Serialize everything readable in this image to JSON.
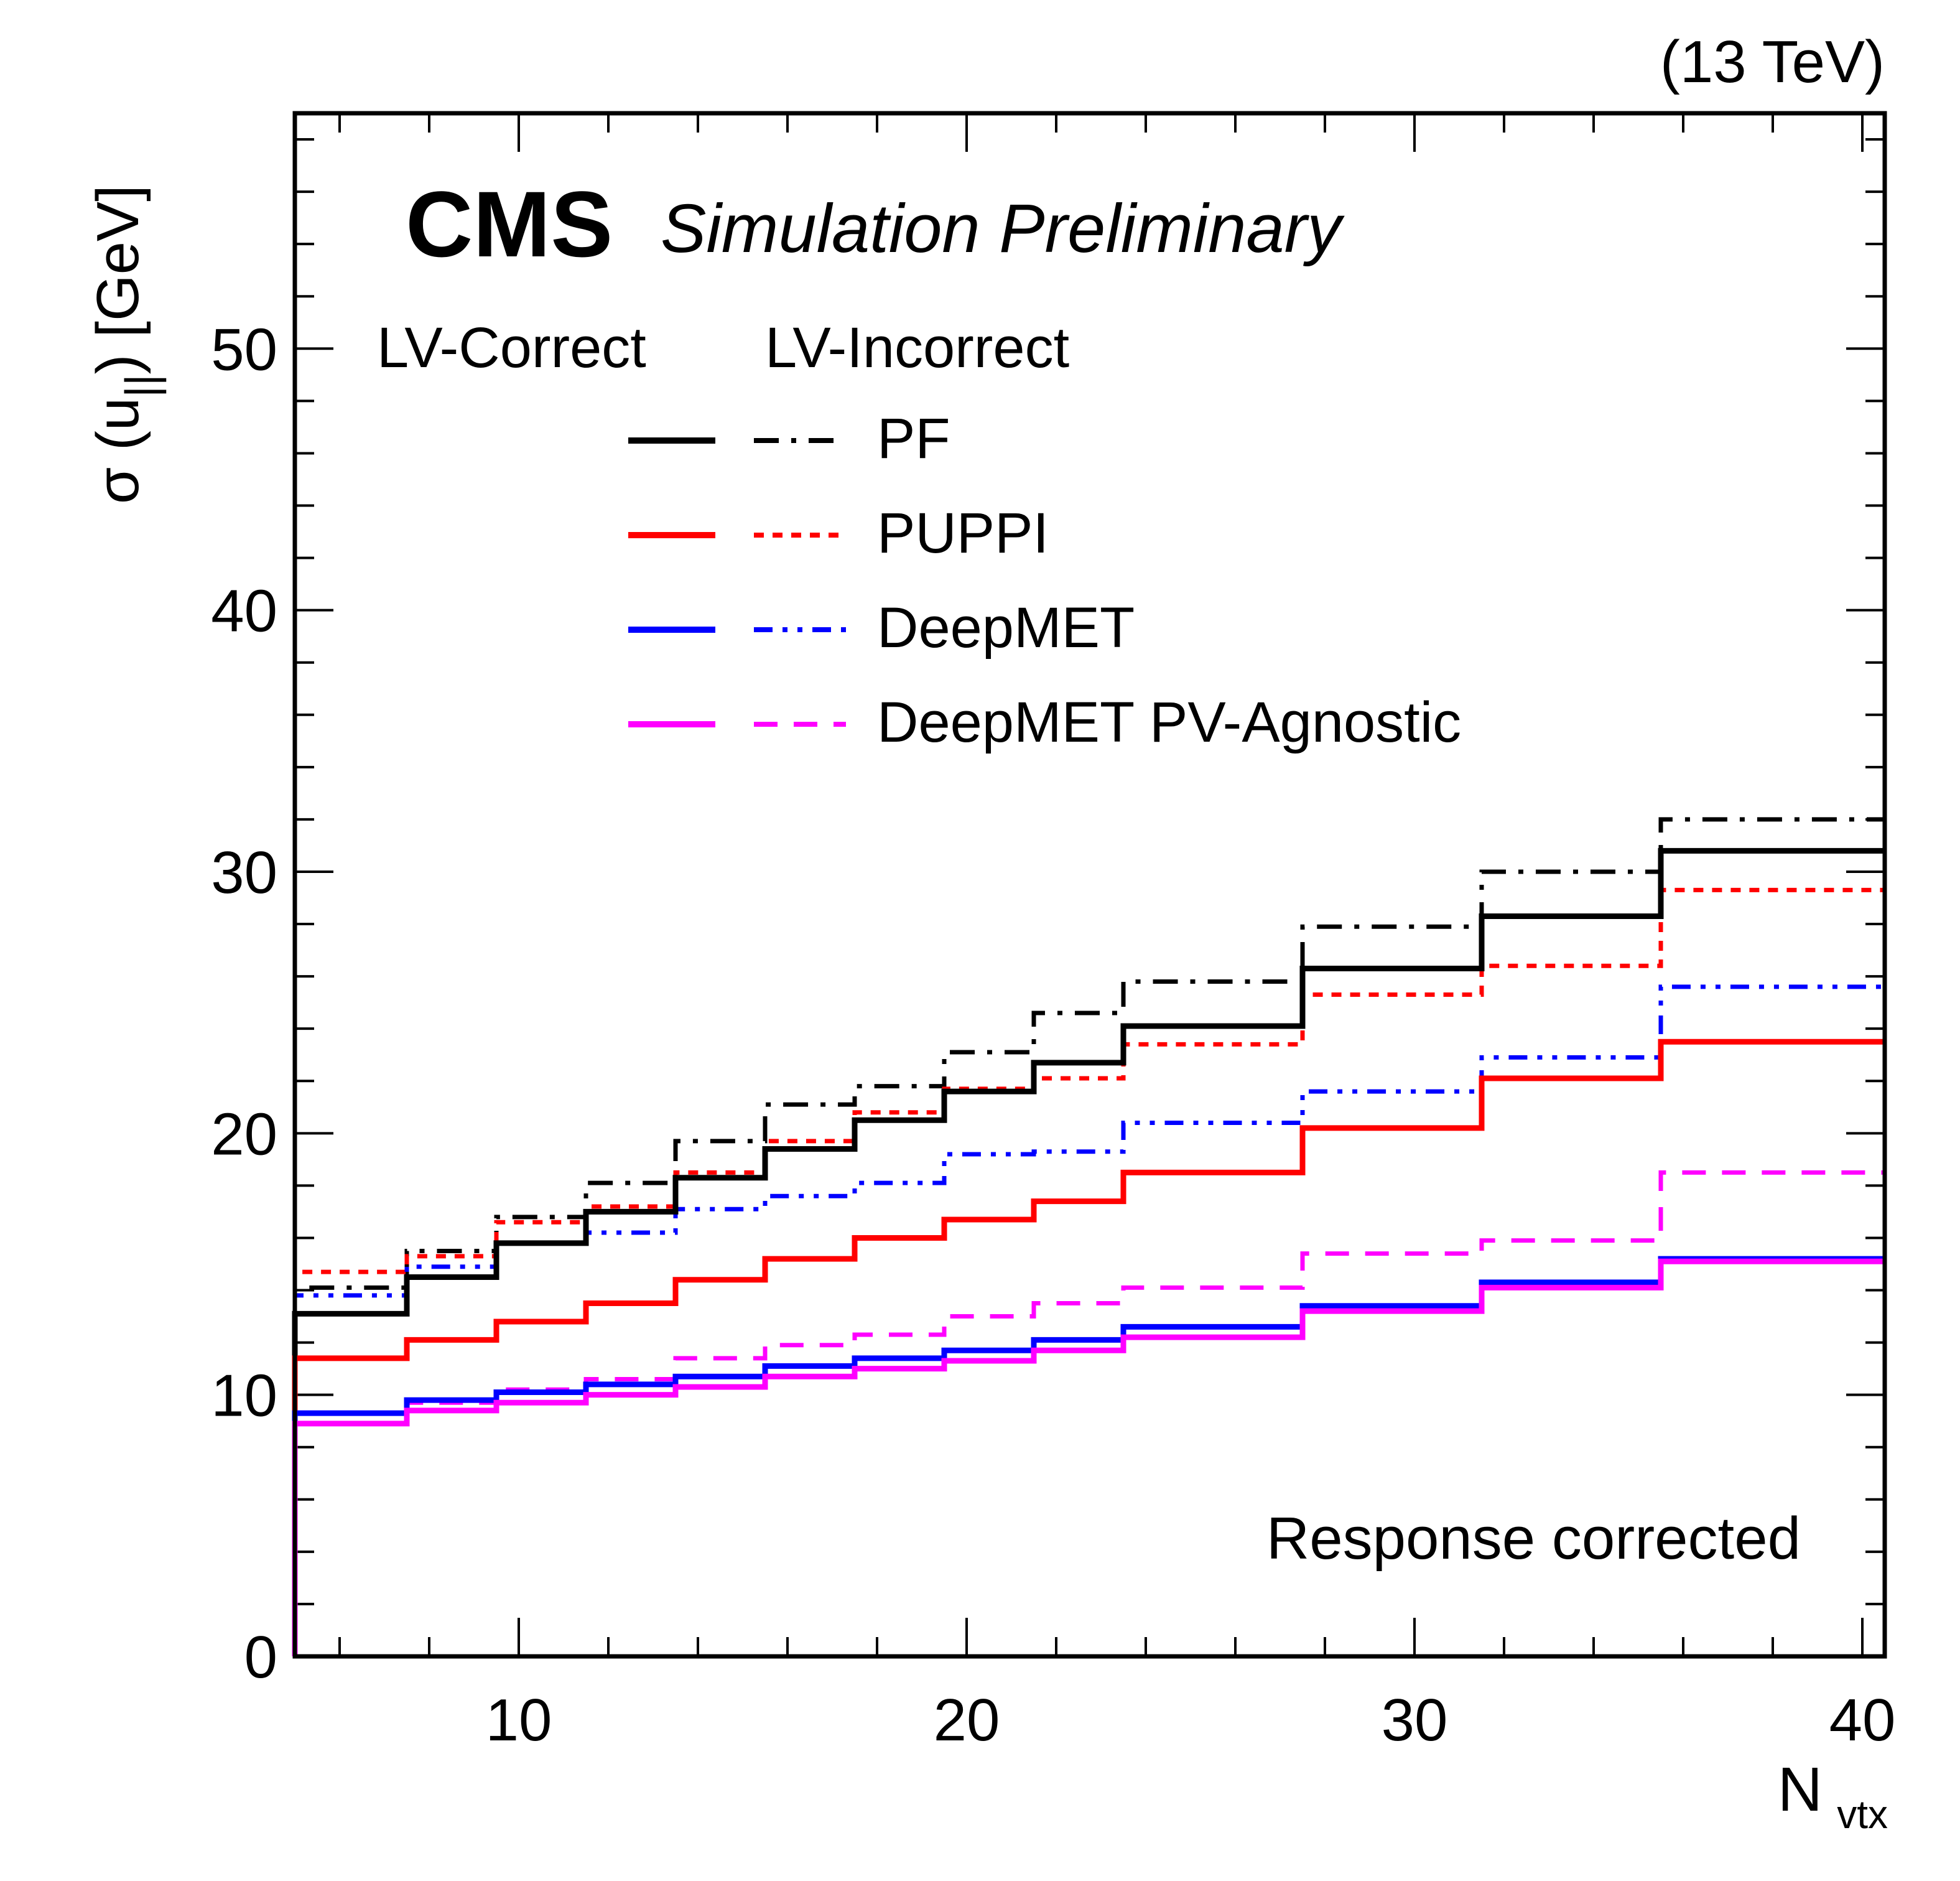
{
  "chart_data": {
    "type": "line",
    "step": true,
    "energy_label": "(13 TeV)",
    "experiment": "CMS",
    "status": "Simulation Preliminary",
    "note": "Response corrected",
    "xlabel": {
      "main": "N",
      "sub": "vtx"
    },
    "ylabel": {
      "prefix": "σ (u",
      "sub": "||",
      "suffix": ") [GeV]"
    },
    "xlim": [
      5,
      40.5
    ],
    "ylim": [
      0,
      59
    ],
    "x_ticks": [
      10,
      20,
      30,
      40
    ],
    "y_ticks": [
      0,
      10,
      20,
      30,
      40,
      50
    ],
    "x_tick_labels": [
      "10",
      "20",
      "30",
      "40"
    ],
    "y_tick_labels": [
      "0",
      "10",
      "20",
      "30",
      "40",
      "50"
    ],
    "grid": false,
    "legend": {
      "placement": "top-center",
      "column_headers": [
        "LV-Correct",
        "LV-Incorrect"
      ],
      "entries": [
        "PF",
        "PUPPI",
        "DeepMET",
        "DeepMET PV-Agnostic"
      ]
    },
    "bin_edges": [
      5,
      7.5,
      9.5,
      11.5,
      13.5,
      15.5,
      17.5,
      19.5,
      21.5,
      23.5,
      27.5,
      31.5,
      35.5,
      40.5
    ],
    "series": [
      {
        "name": "PF",
        "variant": "LV-Incorrect",
        "color": "#000000",
        "dash": "dashdot",
        "values": [
          14.1,
          15.5,
          16.8,
          18.1,
          19.7,
          21.1,
          21.8,
          23.1,
          24.6,
          25.8,
          27.9,
          30.0,
          32.0
        ]
      },
      {
        "name": "PUPPI",
        "variant": "LV-Incorrect",
        "color": "#ff0000",
        "dash": "dotted",
        "values": [
          14.7,
          15.3,
          16.6,
          17.2,
          18.5,
          19.7,
          20.8,
          21.7,
          22.1,
          23.4,
          25.3,
          26.4,
          29.3
        ]
      },
      {
        "name": "DeepMET",
        "variant": "LV-Incorrect",
        "color": "#0000ff",
        "dash": "dashdotdot",
        "values": [
          13.8,
          14.9,
          15.8,
          16.2,
          17.1,
          17.6,
          18.1,
          19.2,
          19.3,
          20.4,
          21.6,
          22.9,
          25.6
        ]
      },
      {
        "name": "DeepMET PV-Agnostic",
        "variant": "LV-Incorrect",
        "color": "#ff00ff",
        "dash": "dashed",
        "values": [
          8.9,
          9.7,
          10.2,
          10.6,
          11.4,
          11.9,
          12.3,
          13.0,
          13.5,
          14.1,
          15.4,
          15.9,
          18.5
        ]
      },
      {
        "name": "PF",
        "variant": "LV-Correct",
        "color": "#000000",
        "dash": "solid",
        "values": [
          13.1,
          14.5,
          15.8,
          17.0,
          18.3,
          19.4,
          20.5,
          21.6,
          22.7,
          24.1,
          26.3,
          28.3,
          30.8
        ]
      },
      {
        "name": "PUPPI",
        "variant": "LV-Correct",
        "color": "#ff0000",
        "dash": "solid",
        "values": [
          11.4,
          12.1,
          12.8,
          13.5,
          14.4,
          15.2,
          16.0,
          16.7,
          17.4,
          18.5,
          20.2,
          22.1,
          23.5
        ]
      },
      {
        "name": "DeepMET",
        "variant": "LV-Correct",
        "color": "#0000ff",
        "dash": "solid",
        "values": [
          9.3,
          9.8,
          10.1,
          10.4,
          10.7,
          11.1,
          11.4,
          11.7,
          12.1,
          12.6,
          13.4,
          14.3,
          15.2
        ]
      },
      {
        "name": "DeepMET PV-Agnostic",
        "variant": "LV-Correct",
        "color": "#ff00ff",
        "dash": "solid",
        "values": [
          8.9,
          9.4,
          9.7,
          10.0,
          10.3,
          10.7,
          11.0,
          11.3,
          11.7,
          12.2,
          13.2,
          14.1,
          15.1
        ]
      }
    ]
  }
}
